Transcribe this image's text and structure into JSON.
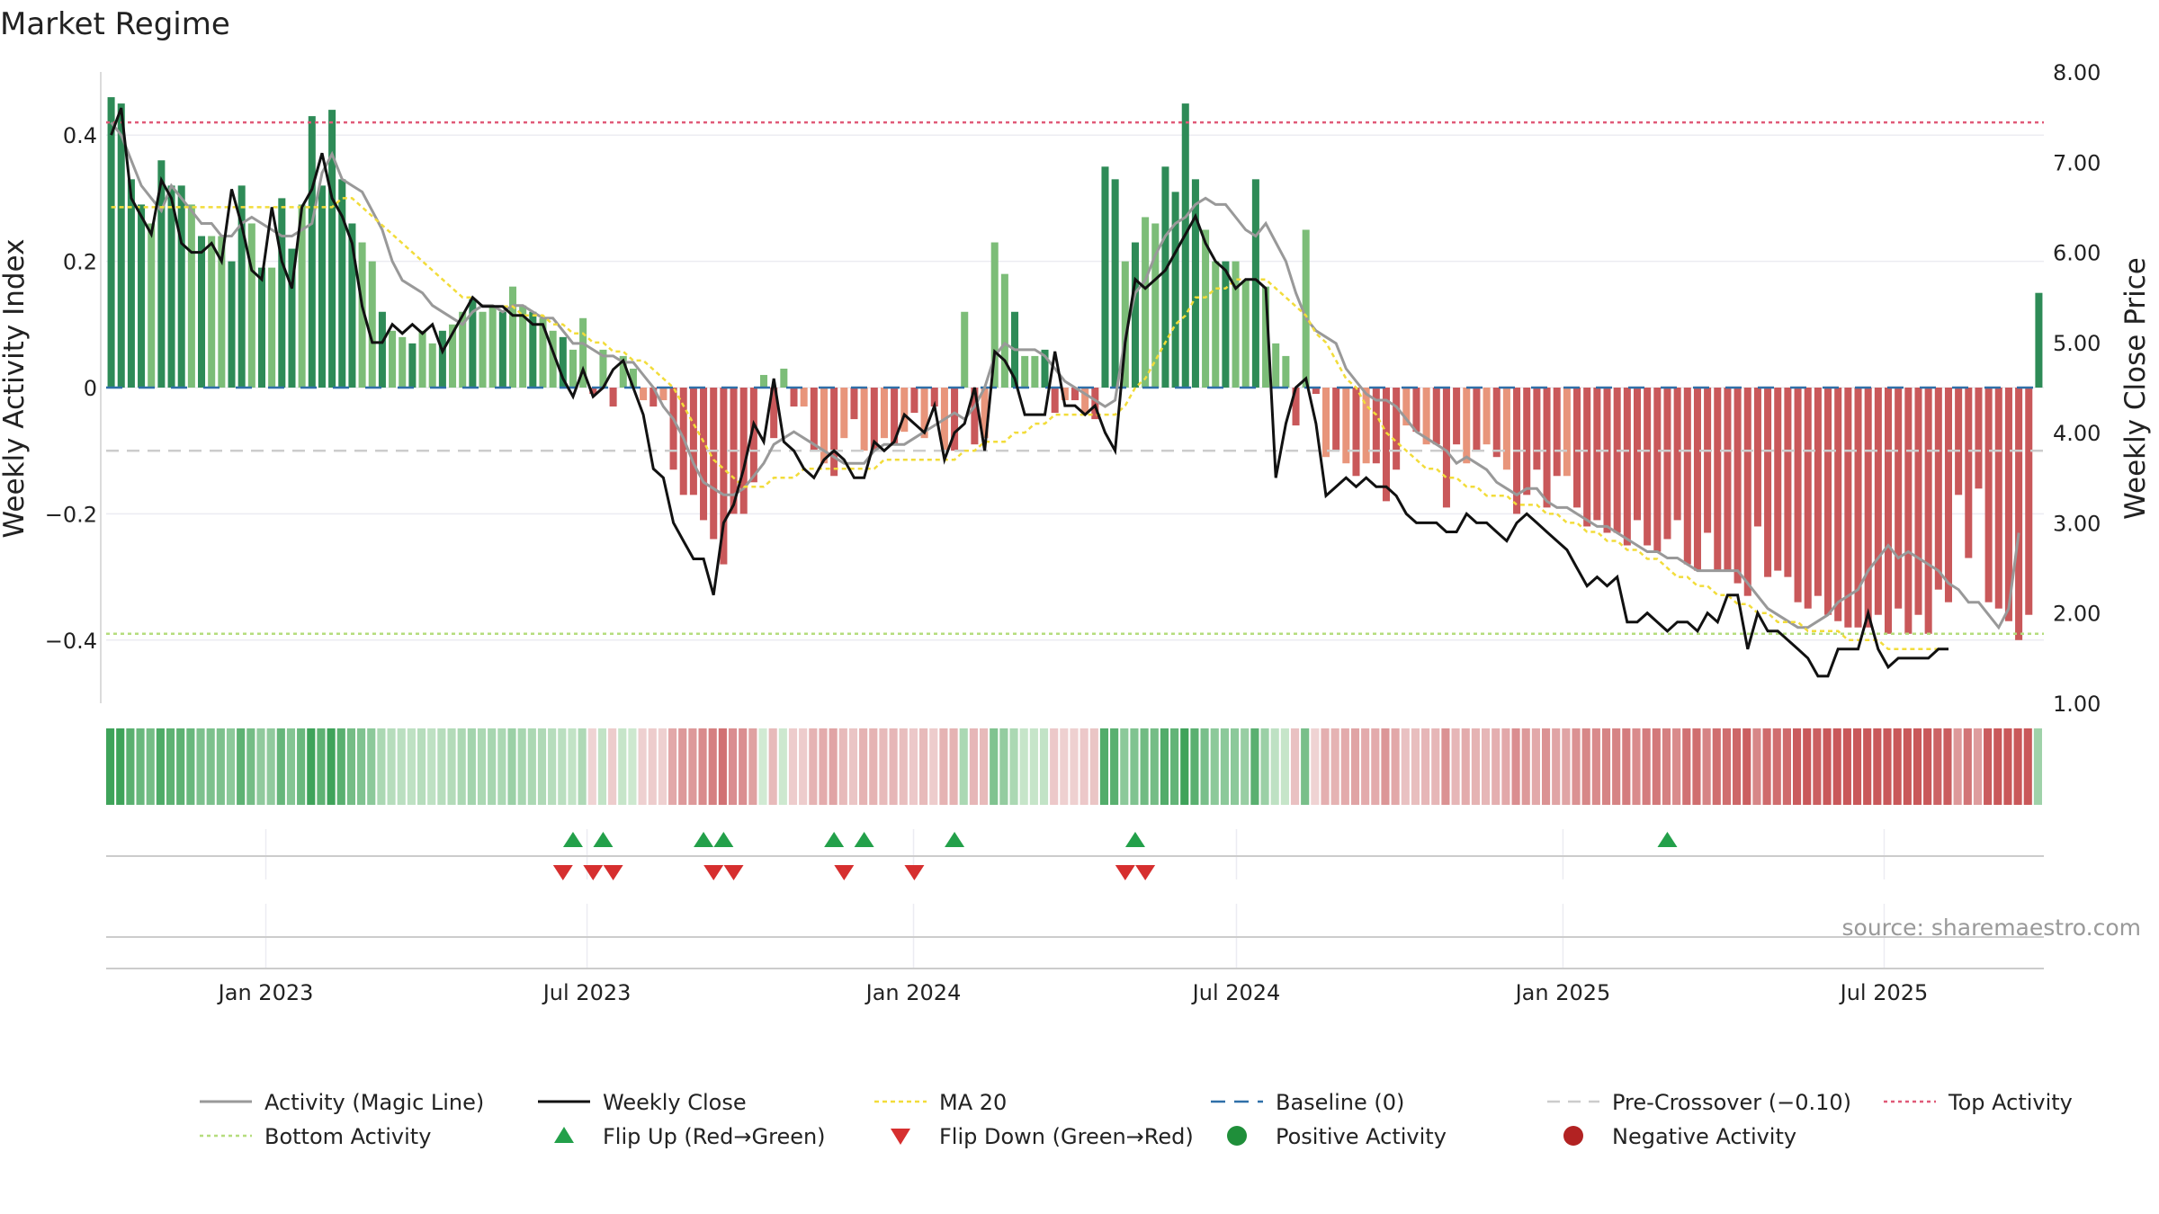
{
  "chart_data": {
    "type": "bar",
    "title": "Market Regime",
    "ylabel_left": "Weekly Activity Index",
    "ylabel_right": "Weekly Close Price",
    "source": "source: sharemaestro.com",
    "ylim_left": [
      -0.5,
      0.5
    ],
    "ylim_right": [
      1.0,
      8.0
    ],
    "yticks_left": [
      0.4,
      0.2,
      0,
      -0.2,
      -0.4
    ],
    "yticks_left_labels": [
      "0.4",
      "0.2",
      "0",
      "−0.2",
      "−0.4"
    ],
    "yticks_right": [
      8,
      7,
      6,
      5,
      4,
      3,
      2,
      1
    ],
    "yticks_right_labels": [
      "8.00",
      "7.00",
      "6.00",
      "5.00",
      "4.00",
      "3.00",
      "2.00",
      "1.00"
    ],
    "x_start": "2022-10-03",
    "x_end": "2025-09-29",
    "xticks": [
      {
        "date": "2023-01-01",
        "label": "Jan 2023"
      },
      {
        "date": "2023-07-01",
        "label": "Jul 2023"
      },
      {
        "date": "2024-01-01",
        "label": "Jan 2024"
      },
      {
        "date": "2024-07-01",
        "label": "Jul 2024"
      },
      {
        "date": "2025-01-01",
        "label": "Jan 2025"
      },
      {
        "date": "2025-07-01",
        "label": "Jul 2025"
      }
    ],
    "levels": {
      "top_activity": 0.42,
      "bottom_activity": -0.39,
      "pre_crossover": -0.1,
      "baseline": 0
    },
    "activity": [
      0.46,
      0.45,
      0.33,
      0.29,
      0.26,
      0.36,
      0.32,
      0.32,
      0.29,
      0.24,
      0.24,
      0.24,
      0.2,
      0.32,
      0.26,
      0.19,
      0.19,
      0.3,
      0.22,
      0.29,
      0.43,
      0.32,
      0.44,
      0.33,
      0.26,
      0.23,
      0.2,
      0.12,
      0.09,
      0.08,
      0.07,
      0.09,
      0.07,
      0.09,
      0.1,
      0.12,
      0.14,
      0.12,
      0.13,
      0.12,
      0.16,
      0.13,
      0.12,
      0.11,
      0.09,
      0.08,
      0.06,
      0.11,
      -0.01,
      0.06,
      -0.03,
      0.05,
      0.03,
      -0.02,
      -0.03,
      -0.02,
      -0.13,
      -0.17,
      -0.17,
      -0.21,
      -0.24,
      -0.28,
      -0.2,
      -0.2,
      -0.15,
      0.02,
      -0.08,
      0.03,
      -0.03,
      -0.03,
      -0.1,
      -0.12,
      -0.14,
      -0.08,
      -0.05,
      -0.1,
      -0.1,
      -0.08,
      -0.09,
      -0.07,
      -0.04,
      -0.08,
      -0.03,
      -0.1,
      -0.1,
      0.12,
      -0.09,
      -0.08,
      0.23,
      0.18,
      0.12,
      0.05,
      0.05,
      0.06,
      -0.04,
      -0.02,
      -0.02,
      -0.04,
      -0.05,
      0.35,
      0.33,
      0.2,
      0.23,
      0.27,
      0.26,
      0.35,
      0.31,
      0.45,
      0.33,
      0.25,
      0.2,
      0.2,
      0.2,
      0.17,
      0.33,
      0.16,
      0.07,
      0.05,
      -0.06,
      0.25,
      -0.01,
      -0.11,
      -0.1,
      -0.12,
      -0.14,
      -0.12,
      -0.12,
      -0.18,
      -0.13,
      -0.06,
      -0.07,
      -0.09,
      -0.09,
      -0.19,
      -0.09,
      -0.12,
      -0.1,
      -0.09,
      -0.11,
      -0.13,
      -0.2,
      -0.17,
      -0.13,
      -0.19,
      -0.14,
      -0.14,
      -0.19,
      -0.22,
      -0.21,
      -0.23,
      -0.23,
      -0.25,
      -0.21,
      -0.25,
      -0.26,
      -0.24,
      -0.21,
      -0.28,
      -0.29,
      -0.23,
      -0.29,
      -0.29,
      -0.31,
      -0.33,
      -0.22,
      -0.3,
      -0.29,
      -0.3,
      -0.34,
      -0.35,
      -0.33,
      -0.36,
      -0.37,
      -0.38,
      -0.38,
      -0.38,
      -0.36,
      -0.39,
      -0.35,
      -0.39,
      -0.36,
      -0.39,
      -0.32,
      -0.34,
      -0.17,
      -0.27,
      -0.16,
      -0.34,
      -0.35,
      -0.37,
      -0.4,
      -0.36,
      0.15
    ],
    "series": [
      {
        "name": "Activity (Magic Line)",
        "values": [
          0.42,
          0.4,
          0.36,
          0.32,
          0.3,
          0.28,
          0.32,
          0.3,
          0.28,
          0.26,
          0.26,
          0.24,
          0.24,
          0.26,
          0.27,
          0.26,
          0.25,
          0.24,
          0.24,
          0.25,
          0.26,
          0.34,
          0.37,
          0.33,
          0.32,
          0.31,
          0.28,
          0.25,
          0.2,
          0.17,
          0.16,
          0.15,
          0.13,
          0.12,
          0.11,
          0.1,
          0.12,
          0.13,
          0.13,
          0.12,
          0.13,
          0.13,
          0.12,
          0.11,
          0.11,
          0.09,
          0.07,
          0.07,
          0.06,
          0.05,
          0.05,
          0.04,
          0.04,
          0.02,
          0.0,
          -0.03,
          -0.05,
          -0.08,
          -0.12,
          -0.15,
          -0.16,
          -0.17,
          -0.17,
          -0.16,
          -0.14,
          -0.12,
          -0.09,
          -0.08,
          -0.07,
          -0.08,
          -0.09,
          -0.1,
          -0.11,
          -0.12,
          -0.12,
          -0.12,
          -0.1,
          -0.09,
          -0.09,
          -0.09,
          -0.08,
          -0.07,
          -0.06,
          -0.05,
          -0.04,
          -0.05,
          -0.03,
          0.0,
          0.05,
          0.07,
          0.06,
          0.06,
          0.06,
          0.05,
          0.03,
          0.01,
          0.0,
          -0.01,
          -0.02,
          -0.03,
          -0.02,
          0.08,
          0.15,
          0.17,
          0.21,
          0.24,
          0.26,
          0.27,
          0.29,
          0.3,
          0.29,
          0.29,
          0.27,
          0.25,
          0.24,
          0.26,
          0.23,
          0.2,
          0.15,
          0.11,
          0.09,
          0.08,
          0.07,
          0.03,
          0.01,
          -0.01,
          -0.02,
          -0.02,
          -0.03,
          -0.05,
          -0.07,
          -0.08,
          -0.09,
          -0.1,
          -0.12,
          -0.11,
          -0.12,
          -0.13,
          -0.15,
          -0.16,
          -0.17,
          -0.16,
          -0.16,
          -0.18,
          -0.19,
          -0.19,
          -0.2,
          -0.21,
          -0.22,
          -0.22,
          -0.23,
          -0.24,
          -0.25,
          -0.26,
          -0.26,
          -0.27,
          -0.27,
          -0.28,
          -0.29,
          -0.29,
          -0.29,
          -0.29,
          -0.29,
          -0.31,
          -0.33,
          -0.35,
          -0.36,
          -0.37,
          -0.38,
          -0.38,
          -0.37,
          -0.36,
          -0.34,
          -0.33,
          -0.32,
          -0.29,
          -0.27,
          -0.25,
          -0.27,
          -0.26,
          -0.27,
          -0.28,
          -0.29,
          -0.31,
          -0.32,
          -0.34,
          -0.34,
          -0.36,
          -0.38,
          -0.35,
          -0.23
        ]
      },
      {
        "name": "Weekly Close",
        "values": [
          7.3,
          7.6,
          6.6,
          6.4,
          6.2,
          6.8,
          6.6,
          6.1,
          6.0,
          6.0,
          6.1,
          5.9,
          6.7,
          6.3,
          5.8,
          5.7,
          6.5,
          5.9,
          5.6,
          6.5,
          6.7,
          7.1,
          6.6,
          6.4,
          6.1,
          5.4,
          5.0,
          5.0,
          5.2,
          5.1,
          5.2,
          5.1,
          5.2,
          4.9,
          5.1,
          5.3,
          5.5,
          5.4,
          5.4,
          5.4,
          5.3,
          5.3,
          5.2,
          5.2,
          4.9,
          4.6,
          4.4,
          4.7,
          4.4,
          4.5,
          4.7,
          4.8,
          4.5,
          4.2,
          3.6,
          3.5,
          3.0,
          2.8,
          2.6,
          2.6,
          2.2,
          3.0,
          3.2,
          3.6,
          4.1,
          3.9,
          4.6,
          3.9,
          3.8,
          3.6,
          3.5,
          3.7,
          3.8,
          3.7,
          3.5,
          3.5,
          3.9,
          3.8,
          3.9,
          4.2,
          4.1,
          4.0,
          4.3,
          3.7,
          4.0,
          4.1,
          4.5,
          3.8,
          4.9,
          4.8,
          4.6,
          4.2,
          4.2,
          4.2,
          4.9,
          4.3,
          4.3,
          4.2,
          4.3,
          4.0,
          3.8,
          5.0,
          5.7,
          5.6,
          5.7,
          5.8,
          6.0,
          6.2,
          6.4,
          6.1,
          5.9,
          5.8,
          5.6,
          5.7,
          5.7,
          5.6,
          3.5,
          4.1,
          4.5,
          4.6,
          4.1,
          3.3,
          3.4,
          3.5,
          3.4,
          3.5,
          3.4,
          3.4,
          3.3,
          3.1,
          3.0,
          3.0,
          3.0,
          2.9,
          2.9,
          3.1,
          3.0,
          3.0,
          2.9,
          2.8,
          3.0,
          3.1,
          3.0,
          2.9,
          2.8,
          2.7,
          2.5,
          2.3,
          2.4,
          2.3,
          2.4,
          1.9,
          1.9,
          2.0,
          1.9,
          1.8,
          1.9,
          1.9,
          1.8,
          2.0,
          1.9,
          2.2,
          2.2,
          1.6,
          2.0,
          1.8,
          1.8,
          1.7,
          1.6,
          1.5,
          1.3,
          1.3,
          1.6,
          1.6,
          1.6,
          2.0,
          1.6,
          1.4,
          1.5,
          1.5,
          1.5,
          1.5,
          1.6,
          1.6
        ]
      },
      {
        "name": "MA 20",
        "values": [
          6.5,
          6.5,
          6.5,
          6.5,
          6.5,
          6.5,
          6.5,
          6.5,
          6.5,
          6.5,
          6.5,
          6.5,
          6.5,
          6.5,
          6.5,
          6.5,
          6.5,
          6.5,
          6.5,
          6.5,
          6.5,
          6.5,
          6.5,
          6.6,
          6.6,
          6.5,
          6.4,
          6.3,
          6.2,
          6.1,
          6.0,
          5.9,
          5.8,
          5.7,
          5.6,
          5.5,
          5.5,
          5.4,
          5.4,
          5.4,
          5.4,
          5.3,
          5.3,
          5.3,
          5.2,
          5.2,
          5.1,
          5.1,
          5.0,
          5.0,
          4.9,
          4.9,
          4.8,
          4.8,
          4.7,
          4.6,
          4.5,
          4.3,
          4.1,
          3.9,
          3.7,
          3.6,
          3.5,
          3.4,
          3.4,
          3.4,
          3.5,
          3.5,
          3.5,
          3.6,
          3.6,
          3.6,
          3.6,
          3.6,
          3.6,
          3.6,
          3.6,
          3.7,
          3.7,
          3.7,
          3.7,
          3.7,
          3.7,
          3.7,
          3.7,
          3.8,
          3.8,
          3.9,
          3.9,
          3.9,
          4.0,
          4.0,
          4.1,
          4.1,
          4.2,
          4.2,
          4.2,
          4.2,
          4.2,
          4.2,
          4.2,
          4.3,
          4.5,
          4.6,
          4.8,
          5.0,
          5.2,
          5.3,
          5.5,
          5.5,
          5.6,
          5.6,
          5.7,
          5.7,
          5.7,
          5.7,
          5.6,
          5.5,
          5.4,
          5.3,
          5.1,
          5.0,
          4.8,
          4.6,
          4.5,
          4.3,
          4.2,
          4.0,
          3.9,
          3.8,
          3.7,
          3.6,
          3.6,
          3.5,
          3.5,
          3.4,
          3.4,
          3.3,
          3.3,
          3.3,
          3.2,
          3.2,
          3.2,
          3.1,
          3.1,
          3.0,
          3.0,
          2.9,
          2.9,
          2.8,
          2.8,
          2.7,
          2.7,
          2.6,
          2.6,
          2.5,
          2.4,
          2.4,
          2.3,
          2.3,
          2.2,
          2.2,
          2.1,
          2.1,
          2.0,
          2.0,
          1.9,
          1.9,
          1.9,
          1.8,
          1.8,
          1.8,
          1.8,
          1.7,
          1.7,
          1.7,
          1.7,
          1.6,
          1.6,
          1.6,
          1.6,
          1.6,
          1.6,
          1.6
        ]
      }
    ],
    "flip_up_indices": [
      46,
      49,
      59,
      61,
      72,
      75,
      84,
      102,
      155
    ],
    "flip_down_indices": [
      45,
      48,
      50,
      60,
      62,
      73,
      80,
      101,
      103
    ],
    "legend": [
      {
        "key": "activity",
        "label": "Activity (Magic Line)"
      },
      {
        "key": "close",
        "label": "Weekly Close"
      },
      {
        "key": "ma20",
        "label": "MA 20"
      },
      {
        "key": "baseline",
        "label": "Baseline (0)"
      },
      {
        "key": "precross",
        "label": "Pre-Crossover (−0.10)"
      },
      {
        "key": "top",
        "label": "Top Activity"
      },
      {
        "key": "bottom",
        "label": "Bottom Activity"
      },
      {
        "key": "flipup",
        "label": "Flip Up (Red→Green)"
      },
      {
        "key": "flipdown",
        "label": "Flip Down (Green→Red)"
      },
      {
        "key": "positive",
        "label": "Positive Activity"
      },
      {
        "key": "negative",
        "label": "Negative Activity"
      }
    ],
    "colors": {
      "green_strong": "#2e8b57",
      "green_light": "#7cbd78",
      "red_strong": "#c9585a",
      "red_light": "#e8957b",
      "activity_line": "#999999",
      "close_line": "#111111",
      "ma20": "#f2dc3a",
      "baseline": "#2f6fa8",
      "pre_crossover": "#cccccc",
      "top": "#e05a78",
      "bottom": "#b5dd7d",
      "flip_up": "#23a04a",
      "flip_down": "#d62f2f",
      "positive_dot": "#1f8f3a",
      "negative_dot": "#b22222"
    }
  }
}
